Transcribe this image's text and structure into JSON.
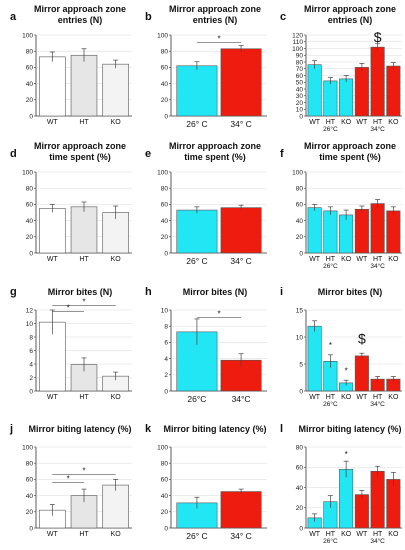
{
  "figure": {
    "panels": [
      {
        "letter": "a",
        "title_lines": [
          "Mirror approach zone",
          "entries (N)"
        ]
      },
      {
        "letter": "b",
        "title_lines": [
          "Mirror approach zone",
          "entries (N)"
        ]
      },
      {
        "letter": "c",
        "title_lines": [
          "Mirror approach zone",
          "entries (N)"
        ]
      },
      {
        "letter": "d",
        "title_lines": [
          "Mirror approach zone",
          "time spent (%)"
        ]
      },
      {
        "letter": "e",
        "title_lines": [
          "Mirror approach zone",
          "time spent (%)"
        ]
      },
      {
        "letter": "f",
        "title_lines": [
          "Mirror approach zone",
          "time spent (%)"
        ]
      },
      {
        "letter": "g",
        "title_lines": [
          "Mirror bites (N)"
        ]
      },
      {
        "letter": "h",
        "title_lines": [
          "Mirror bites (N)"
        ]
      },
      {
        "letter": "i",
        "title_lines": [
          "Mirror bites (N)"
        ]
      },
      {
        "letter": "j",
        "title_lines": [
          "Mirror biting latency (%)"
        ]
      },
      {
        "letter": "k",
        "title_lines": [
          "Mirror biting latency (%)"
        ]
      },
      {
        "letter": "l",
        "title_lines": [
          "Mirror biting latency (%)"
        ]
      }
    ]
  },
  "colors": {
    "white_bar": "#ffffff",
    "light_gray_bar": "#e8e8e8",
    "cyan": "#22e6f4",
    "red": "#ee1c0e",
    "cyan_dark_bar": "#4ec6e8",
    "dark_red": "#d01a10"
  },
  "chart_data": [
    {
      "id": "a",
      "type": "bar",
      "categories": [
        "WT",
        "HT",
        "KO"
      ],
      "values": [
        73,
        75,
        64
      ],
      "errors": [
        6,
        8,
        5
      ],
      "ylim": [
        0,
        100
      ],
      "yticks": [
        0,
        20,
        40,
        60,
        80,
        100
      ],
      "fills": [
        "#ffffff",
        "#e6e6e6",
        "#f3f3f3"
      ]
    },
    {
      "id": "b",
      "type": "bar",
      "categories": [
        "26° C",
        "34° C"
      ],
      "values": [
        62,
        83
      ],
      "errors": [
        5,
        4
      ],
      "ylim": [
        0,
        100
      ],
      "yticks": [
        0,
        20,
        40,
        60,
        80,
        100
      ],
      "fills": [
        "#22e6f4",
        "#ee1c0e"
      ],
      "annotations": [
        {
          "text": "*",
          "between": [
            0,
            1
          ],
          "y": 91
        }
      ]
    },
    {
      "id": "c",
      "type": "bar",
      "categories": [
        "WT",
        "HT",
        "KO",
        "WT",
        "HT",
        "KO"
      ],
      "groups": [
        "26°C",
        "34°C"
      ],
      "values": [
        76,
        52,
        55,
        72,
        102,
        74
      ],
      "errors": [
        6,
        5,
        5,
        6,
        5,
        5
      ],
      "ylim": [
        0,
        120
      ],
      "yticks": [
        0,
        10,
        20,
        30,
        40,
        50,
        60,
        70,
        80,
        90,
        100,
        110,
        120
      ],
      "fills": [
        "#22e6f4",
        "#22e6f4",
        "#22e6f4",
        "#ee1c0e",
        "#ee1c0e",
        "#ee1c0e"
      ],
      "annotations": [
        {
          "text": "$",
          "bar": 4,
          "y": 110
        }
      ]
    },
    {
      "id": "d",
      "type": "bar",
      "categories": [
        "WT",
        "HT",
        "KO"
      ],
      "values": [
        55,
        57,
        50
      ],
      "errors": [
        5,
        6,
        8
      ],
      "ylim": [
        0,
        100
      ],
      "yticks": [
        0,
        20,
        40,
        60,
        80,
        100
      ],
      "fills": [
        "#ffffff",
        "#e6e6e6",
        "#f3f3f3"
      ]
    },
    {
      "id": "e",
      "type": "bar",
      "categories": [
        "26° C",
        "34° C"
      ],
      "values": [
        53,
        56
      ],
      "errors": [
        4,
        3
      ],
      "ylim": [
        0,
        100
      ],
      "yticks": [
        0,
        20,
        40,
        60,
        80,
        100
      ],
      "fills": [
        "#22e6f4",
        "#ee1c0e"
      ]
    },
    {
      "id": "f",
      "type": "bar",
      "categories": [
        "WT",
        "HT",
        "KO",
        "WT",
        "HT",
        "KO"
      ],
      "groups": [
        "26°C",
        "34°C"
      ],
      "values": [
        56,
        52,
        47,
        54,
        61,
        52
      ],
      "errors": [
        4,
        5,
        6,
        4,
        5,
        5
      ],
      "ylim": [
        0,
        100
      ],
      "yticks": [
        0,
        20,
        40,
        60,
        80,
        100
      ],
      "fills": [
        "#22e6f4",
        "#22e6f4",
        "#22e6f4",
        "#ee1c0e",
        "#ee1c0e",
        "#ee1c0e"
      ]
    },
    {
      "id": "g",
      "type": "bar",
      "categories": [
        "WT",
        "HT",
        "KO"
      ],
      "values": [
        10.2,
        3.9,
        2.2
      ],
      "errors": [
        1.8,
        1.0,
        0.6
      ],
      "ylim": [
        0,
        12
      ],
      "yticks": [
        0,
        2,
        4,
        6,
        8,
        10,
        12
      ],
      "fills": [
        "#ffffff",
        "#e6e6e6",
        "#f3f3f3"
      ],
      "annotations": [
        {
          "text": "*",
          "between": [
            0,
            1
          ],
          "y": 11.8
        },
        {
          "text": "*",
          "between": [
            0,
            2
          ],
          "y": 12.7
        }
      ]
    },
    {
      "id": "h",
      "type": "bar",
      "categories": [
        "26°C",
        "34°C"
      ],
      "values": [
        7.3,
        3.8
      ],
      "errors": [
        1.6,
        0.8
      ],
      "ylim": [
        0,
        10
      ],
      "yticks": [
        0,
        2,
        4,
        6,
        8,
        10
      ],
      "fills": [
        "#22e6f4",
        "#ee1c0e"
      ],
      "annotations": [
        {
          "text": "*",
          "between": [
            0,
            1
          ],
          "y": 9.1
        }
      ]
    },
    {
      "id": "i",
      "type": "bar",
      "categories": [
        "WT",
        "HT",
        "KO",
        "WT",
        "HT",
        "KO"
      ],
      "groups": [
        "26°C",
        "34°C"
      ],
      "values": [
        12,
        5.5,
        1.5,
        6.5,
        2.2,
        2.2
      ],
      "errors": [
        1,
        1.2,
        0.5,
        0.5,
        0.5,
        0.5
      ],
      "ylim": [
        0,
        15
      ],
      "yticks": [
        0,
        5,
        10,
        15
      ],
      "fills": [
        "#22e6f4",
        "#22e6f4",
        "#22e6f4",
        "#ee1c0e",
        "#ee1c0e",
        "#ee1c0e"
      ],
      "annotations": [
        {
          "text": "*",
          "bar": 1,
          "y": 8
        },
        {
          "text": "*",
          "bar": 2,
          "y": 3.2
        },
        {
          "text": "$",
          "bar": 3,
          "y": 8.8
        }
      ]
    },
    {
      "id": "j",
      "type": "bar",
      "categories": [
        "WT",
        "HT",
        "KO"
      ],
      "values": [
        22,
        40,
        53
      ],
      "errors": [
        7,
        8,
        7
      ],
      "ylim": [
        0,
        100
      ],
      "yticks": [
        0,
        20,
        40,
        60,
        80,
        100
      ],
      "fills": [
        "#ffffff",
        "#e6e6e6",
        "#f3f3f3"
      ],
      "annotations": [
        {
          "text": "*",
          "between": [
            0,
            1
          ],
          "y": 56
        },
        {
          "text": "*",
          "between": [
            0,
            2
          ],
          "y": 66
        }
      ]
    },
    {
      "id": "k",
      "type": "bar",
      "categories": [
        "26° C",
        "34° C"
      ],
      "values": [
        31,
        45
      ],
      "errors": [
        7,
        3
      ],
      "ylim": [
        0,
        100
      ],
      "yticks": [
        0,
        20,
        40,
        60,
        80,
        100
      ],
      "fills": [
        "#22e6f4",
        "#ee1c0e"
      ]
    },
    {
      "id": "l",
      "type": "bar",
      "categories": [
        "WT",
        "HT",
        "KO",
        "WT",
        "HT",
        "KO"
      ],
      "groups": [
        "26°C",
        "34°C"
      ],
      "values": [
        10,
        26,
        58,
        33,
        56,
        48
      ],
      "errors": [
        4,
        6,
        8,
        4,
        5,
        7
      ],
      "ylim": [
        0,
        80
      ],
      "yticks": [
        0,
        20,
        40,
        60,
        80
      ],
      "fills": [
        "#22e6f4",
        "#22e6f4",
        "#22e6f4",
        "#ee1c0e",
        "#ee1c0e",
        "#ee1c0e"
      ],
      "annotations": [
        {
          "text": "*",
          "bar": 2,
          "y": 70
        }
      ]
    }
  ]
}
